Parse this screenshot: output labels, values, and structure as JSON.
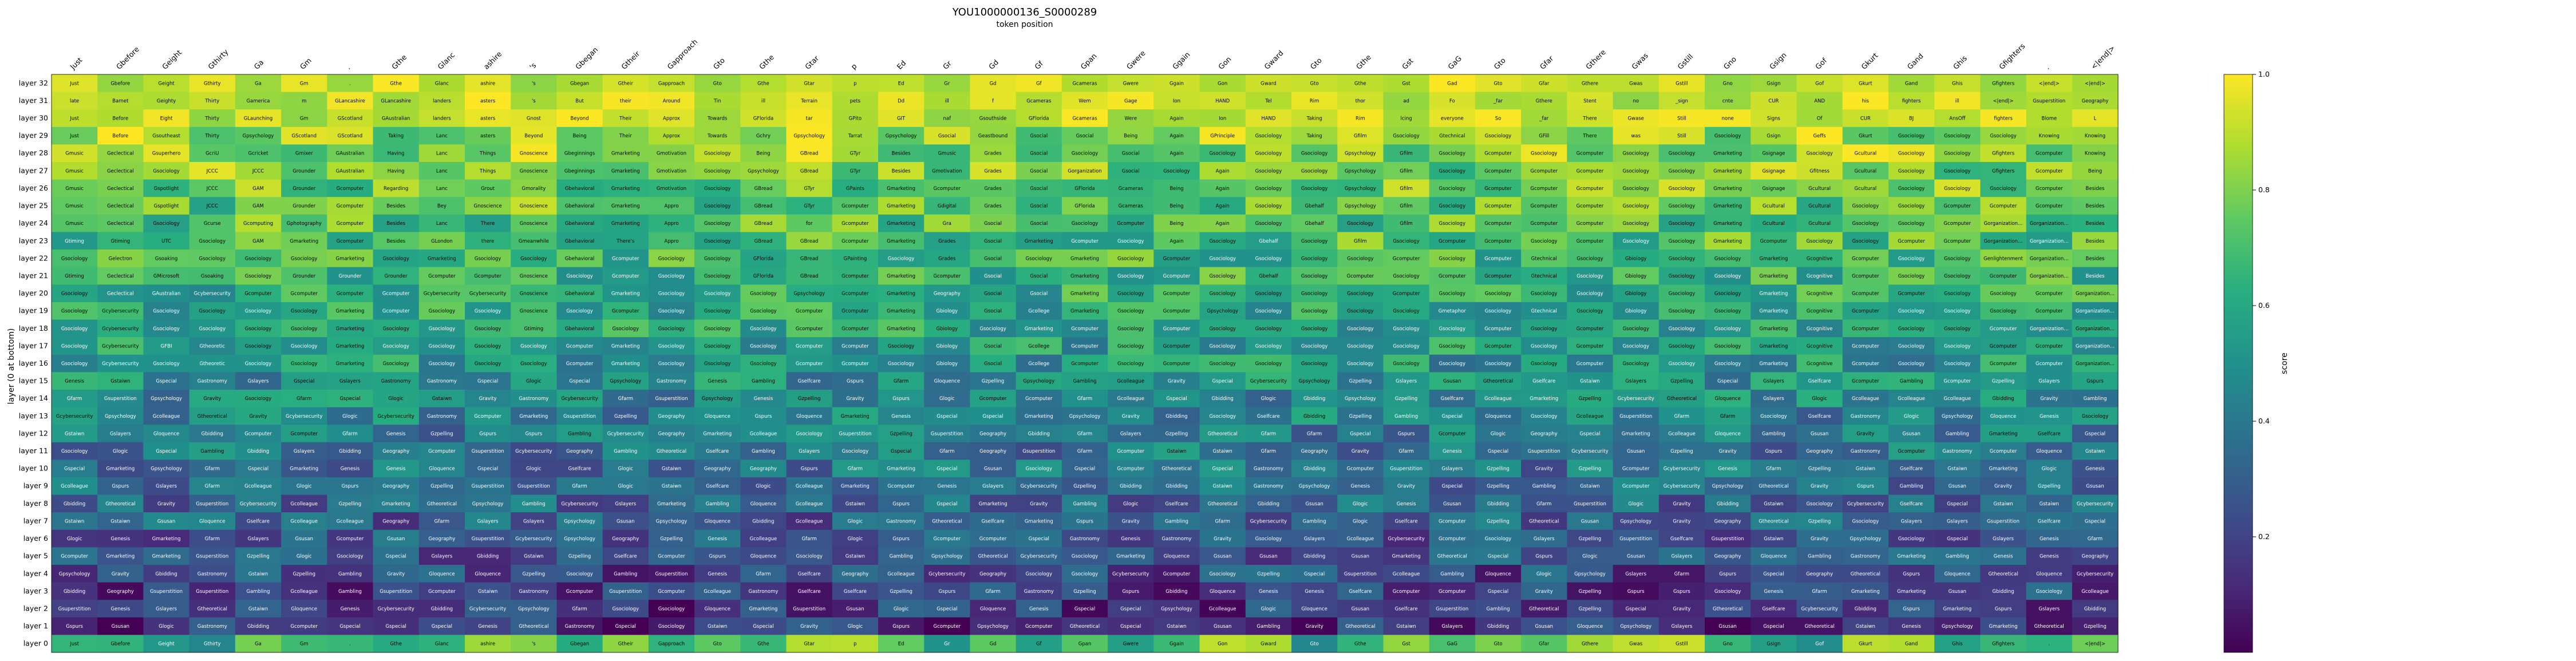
{
  "chart_data": {
    "type": "heatmap",
    "title": "YOU1000000136_S0000289",
    "xlabel": "token position",
    "ylabel": "layer (0 at bottom)",
    "colorbar_label": "score",
    "colormap": "viridis",
    "value_range": [
      0,
      1
    ],
    "colorbar_ticks": [
      "0.2",
      "0.4",
      "0.6",
      "0.8",
      "1.0"
    ],
    "colorbar_tick_values": [
      0.2,
      0.4,
      0.6,
      0.8,
      1.0
    ],
    "x_tokens": [
      "Just",
      "Gbefore",
      "Geight",
      "Gthirty",
      "Ga",
      "Gm",
      ".",
      "Gthe",
      "Glanc",
      "ashire",
      "'s",
      "Gbegan",
      "Gtheir",
      "Gapproach",
      "Gto",
      "Gthe",
      "Gtar",
      "p",
      "Ed",
      "Gr",
      "Gd",
      "Gf",
      "Gpan",
      "Gwere",
      "Ggain",
      "Gon",
      "Gward",
      "Gto",
      "Gthe",
      "Gst",
      "GaG",
      "Gto",
      "Gfar",
      "Gthere",
      "Gwas",
      "Gstill",
      "Gno",
      "Gsign",
      "Gof",
      "Gkurt",
      "Gand",
      "Ghis",
      "Gfighters",
      ".",
      "<|end|>"
    ],
    "layers": [
      "layer 32",
      "layer 31",
      "layer 30",
      "layer 29",
      "layer 28",
      "layer 27",
      "layer 26",
      "layer 25",
      "layer 24",
      "layer 23",
      "layer 22",
      "layer 21",
      "layer 20",
      "layer 19",
      "layer 18",
      "layer 17",
      "layer 16",
      "layer 15",
      "layer 14",
      "layer 13",
      "layer 12",
      "layer 11",
      "layer 10",
      "layer 9",
      "layer 8",
      "layer 7",
      "layer 6",
      "layer 5",
      "layer 4",
      "layer 3",
      "layer 2",
      "layer 1",
      "layer 0"
    ],
    "vocab": [
      "Gsociology",
      "Gcomputer",
      "Gcybersecurity",
      "Gmarketing",
      "Genesis",
      "Gastronomy",
      "Geography",
      "Gravity",
      "Gpsychology",
      "Gtheoretical",
      "Glogic",
      "Gcolleague",
      "Gloquence",
      "Gstaiwn",
      "Gspecial",
      "Gselfcare",
      "Gsuperstition",
      "Gzpelling",
      "Gsusan",
      "Gbidding",
      "Gambling",
      "Gspurs",
      "Gslayers",
      "Gfarm"
    ],
    "top_rows": [
      [
        "Just",
        "Gbefore",
        "Geight",
        "Gthirty",
        "Ga",
        "Gm",
        ".",
        "Gthe",
        "Glanc",
        "ashire",
        "'s",
        "Gbegan",
        "Gtheir",
        "Gapproach",
        "Gto",
        "Gthe",
        "Gtar",
        "p",
        "Ed",
        "Gr",
        "Gd",
        "Gf",
        "Gcameras",
        "Gwere",
        "Ggain",
        "Gon",
        "Gward",
        "Gto",
        "Gthe",
        "Gst",
        "Gad",
        "Gto",
        "Gfar",
        "Gthere",
        "Gwas",
        "Gstill",
        "Gno",
        "Gsign",
        "Gof",
        "Gkurt",
        "Gand",
        "Ghis",
        "Gfighters",
        "<|end|>",
        "<|end|>"
      ],
      [
        "late",
        "Barnet",
        "Geighty",
        "Thirty",
        "Gamerica",
        "m",
        "GLancashire",
        "GLancashire",
        "landers",
        "asters",
        "'s",
        "But",
        "their",
        "Around",
        "Tin",
        "ill",
        "Terrain",
        "pets",
        "Dd",
        "ill",
        "f",
        "Gcameras",
        "Wem",
        "Gage",
        "Ion",
        "HAND",
        "Tel",
        "Rim",
        "thor",
        "ad",
        "Fo",
        "_far",
        "Gthere",
        "Stent",
        "no",
        "_sign",
        "cnte",
        "CUR",
        "AND",
        "his",
        "fighters",
        "ill",
        "<|end|>"
      ],
      [
        "Just",
        "Before",
        "Eight",
        "Thirty",
        "GLaunching",
        "Gm",
        "GScotland",
        "GAustralian",
        "landers",
        "asters",
        "Gnost",
        "Beyond",
        "Their",
        "Approx",
        "Towards",
        "GFlorida",
        "tar",
        "GPito",
        "GIT",
        "naf",
        "Gsouthside",
        "GFlorida",
        "Gcameras",
        "Were",
        "Again",
        "Ion",
        "HAND",
        "Taking",
        "Rim",
        "lcing",
        "everyone",
        "So",
        "_far",
        "There",
        "Gwase",
        "Still",
        "none",
        "Signs",
        "Of",
        "CUR",
        "BJ",
        "AnsOff",
        "fighters",
        "Blome",
        "L"
      ],
      [
        "Just",
        "Before",
        "Gsoutheast",
        "Thirty",
        "Gpsychology",
        "GScotland",
        "GScotland",
        "Taking",
        "Lanc",
        "asters",
        "Beyond",
        "Being",
        "Their",
        "Approx",
        "Towards",
        "Gchry",
        "Gpsychology",
        "Tarrat",
        "Gpsychology",
        "Gsocial",
        "Geastbound",
        "Gsocial",
        "Gsocial",
        "Being",
        "Again",
        "GPrinciple",
        "Gsociology",
        "Taking",
        "Gfilm",
        "Gsociology",
        "Gtechnical",
        "Gsociology",
        "GFill",
        "There",
        "was",
        "Still",
        "Gsociology",
        "Gsign",
        "Geffs",
        "Gkurt",
        "Gsociology",
        "Gsociology",
        "Gsociology",
        "Knowing",
        "Knowing"
      ],
      [
        "Gmusic",
        "Geclectical",
        "Gsuperhero",
        "GcriU",
        "Gcricket",
        "Gmixer",
        "GAustralian",
        "Having",
        "Lanc",
        "Things",
        "Gnoscience",
        "Gbeginnings",
        "Gmarketing",
        "Gmotivation",
        "Gsociology",
        "Being",
        "GBread",
        "GTyr",
        "Besides",
        "Gmusic",
        "Grades",
        "Gsocial",
        "Gsociology",
        "Gsocial",
        "Again",
        "Gsociology",
        "Gsociology",
        "Gsociology",
        "Gpsychology",
        "Gfilm",
        "Gsociology",
        "Gcomputer",
        "Gsociology",
        "Gcomputer",
        "Gsociology",
        "Gsociology",
        "Gmarketing",
        "Gsignage",
        "Gsociology",
        "Gcultural",
        "Gsociology",
        "Gsociology",
        "Gfighters",
        "Gcomputer",
        "Knowing"
      ],
      [
        "Gmusic",
        "Geclectical",
        "Gsociology",
        "JCCC",
        "JCCC",
        "Grounder",
        "GAustralian",
        "Having",
        "Lanc",
        "Things",
        "Gnoscience",
        "Gbeginnings",
        "Gmarketing",
        "Gmotivation",
        "Gsociology",
        "Gpsychology",
        "GBread",
        "GTyr",
        "Besides",
        "Gmotivation",
        "Grades",
        "Gsocial",
        "Gorganization",
        "Gsocial",
        "Gsociology",
        "Again",
        "Gsociology",
        "Gsociology",
        "Gpsychology",
        "Gfilm",
        "Gsociology",
        "Gcomputer",
        "Gcomputer",
        "Gcomputer",
        "Gsociology",
        "Gsociology",
        "Gmarketing",
        "Gsignage",
        "Gfitness",
        "Gcultural",
        "Gsociology",
        "Gsociology",
        "Gfighters",
        "Gcomputer",
        "Being"
      ],
      [
        "Gmusic",
        "Geclectical",
        "Gspotlight",
        "JCCC",
        "GAM",
        "Grounder",
        "Gcomputer",
        "Regarding",
        "Lanc",
        "Grout",
        "Gmorality",
        "Gbehavioral",
        "Gmarketing",
        "Gmotivation",
        "Gsociology",
        "GBread",
        "GTyr",
        "GPaints",
        "Gmarketing",
        "Gcomputer",
        "Grades",
        "Gsocial",
        "GFlorida",
        "Gcameras",
        "Being",
        "Again",
        "Gsociology",
        "Gsociology",
        "Gpsychology",
        "Gfilm",
        "Gsociology",
        "Gcomputer",
        "Gcomputer",
        "Gcomputer",
        "Gsociology",
        "Gsociology",
        "Gmarketing",
        "Gsignage",
        "Gcultural",
        "Gcultural",
        "Gsociology",
        "Gsociology",
        "Gsociology",
        "Gcomputer",
        "Besides"
      ],
      [
        "Gmusic",
        "Geclectical",
        "Gspotlight",
        "JCCC",
        "GAM",
        "Grounder",
        "Gcomputer",
        "Besides",
        "Bey",
        "Gnoscience",
        "Gnoscience",
        "Gbehavioral",
        "Gmarketing",
        "Appro",
        "Gsociology",
        "GBread",
        "GTyr",
        "Gcomputer",
        "Gmarketing",
        "Gdigital",
        "Grades",
        "Gsocial",
        "GFlorida",
        "Gcameras",
        "Being",
        "Again",
        "Gsociology",
        "Gbehalf",
        "Gpsychology",
        "Gfilm",
        "Gsociology",
        "Gcomputer",
        "Gcomputer",
        "Gcomputer",
        "Gsociology",
        "Gsociology",
        "Gmarketing",
        "Gcultural",
        "Gcultural",
        "Gsociology",
        "Gsociology",
        "Gcomputer",
        "Gcomputer",
        "Gcomputer",
        "Besides"
      ],
      [
        "Gmusic",
        "Geclectical",
        "Gsociology",
        "Gcurse",
        "Gcomputing",
        "Gphotography",
        "Gcomputer",
        "Besides",
        "Lanc",
        "There",
        "Gnoscience",
        "Gbehavioral",
        "Gmarketing",
        "Appro",
        "Gsociology",
        "GBread",
        "for",
        "Gcomputer",
        "Gmarketing",
        "Gra",
        "Gsocial",
        "Gsocial",
        "Gsociology",
        "Gcomputer",
        "Being",
        "Again",
        "Gsociology",
        "Gbehalf",
        "Gsociology",
        "Gfilm",
        "Gsociology",
        "Gcomputer",
        "Gcomputer",
        "Gcomputer",
        "Gsociology",
        "Gsociology",
        "Gmarketing",
        "Gcultural",
        "Gcultural",
        "Gsociology",
        "Gsociology",
        "Gcomputer",
        "Gorganizational",
        "Gorganizational",
        "Besides"
      ],
      [
        "Gtiming",
        "Gtiming",
        "UTC",
        "Gsociology",
        "GAM",
        "Gmarketing",
        "Gcomputer",
        "Besides",
        "GLondon",
        "there",
        "Gmeanwhile",
        "Gbehavioral",
        "There's",
        "Appro",
        "Gsociology",
        "GBread",
        "GBread",
        "Gcomputer",
        "Gmarketing",
        "Grades",
        "Gsocial",
        "Gmarketing",
        "Gcomputer",
        "Gsociology",
        "Again",
        "Gsociology",
        "Gbehalf",
        "Gsociology",
        "Gfilm",
        "Gsociology",
        "Gcomputer",
        "Gcomputer",
        "Gsociology",
        "Gcomputer",
        "Gsociology",
        "Gsociology",
        "Gmarketing",
        "Gcomputer",
        "Gsociology",
        "Gsociology",
        "Gcomputer",
        "Gcomputer",
        "Gorganizational",
        "Gorganizational",
        "Besides"
      ],
      [
        "Gsociology",
        "Gelectron",
        "Gsoaking",
        "Gsociology",
        "Gsociology",
        "Gsociology",
        "Gmarketing",
        "Gsociology",
        "Gmarketing",
        "Gsociology",
        "Gsociology",
        "Gbehavioral",
        "Gcomputer",
        "Gsociology",
        "Gsociology",
        "GFlorida",
        "GBread",
        "GPainting",
        "Gsociology",
        "Grades",
        "Gsocial",
        "Gsociology",
        "Gmarketing",
        "Gsociology",
        "Gcomputer",
        "Gsociology",
        "Gsociology",
        "Gsociology",
        "Gsociology",
        "Gcomputer",
        "Gsociology",
        "Gcomputer",
        "Gtechnical",
        "Gsociology",
        "Gbiology",
        "Gsociology",
        "Gsociology",
        "Gmarketing",
        "Gcognitive",
        "Gcomputer",
        "Gsociology",
        "Gsociology",
        "Genlightenment",
        "Gorganizational",
        "Besides"
      ],
      [
        "Gtiming",
        "Geclectical",
        "GMicrosoft",
        "Gsoaking",
        "Gsociology",
        "Grounder",
        "Grounder",
        "Grounder",
        "Gcomputer",
        "Gcomputer",
        "Gnoscience",
        "Gsociology",
        "Gcomputer",
        "Gsociology",
        "Gsociology",
        "GFlorida",
        "GBread",
        "Gcomputer",
        "Gmarketing",
        "Gcomputer",
        "Gsocial",
        "Gsocial",
        "Gmarketing",
        "Gsociology",
        "Gcomputer",
        "Gsociology",
        "Gbehalf",
        "Gsociology",
        "Gcomputer",
        "Gsociology",
        "Gcomputer",
        "Gcomputer",
        "Gtechnical",
        "Gsociology",
        "Gbiology",
        "Gsociology",
        "Gsociology",
        "Gmarketing",
        "Gcognitive",
        "Gcomputer",
        "Gsociology",
        "Gsociology",
        "Gcomputer",
        "Gorganizational",
        "Besides"
      ],
      [
        "Gsociology",
        "Geclectical",
        "GAustralian",
        "Gcybersecurity",
        "Gcomputer",
        "Gcomputer",
        "Gcomputer",
        "Gcomputer",
        "Gcybersecurity",
        "Gcybersecurity",
        "Gnoscience",
        "Gbehavioral",
        "Gmarketing",
        "Gsociology",
        "Gsociology",
        "Gsociology",
        "Gpsychology",
        "Gcomputer",
        "Gmarketing",
        "Geography",
        "Gsocial",
        "Gsocial",
        "Gmarketing",
        "Gsociology",
        "Gcomputer",
        "Gsociology",
        "Gsociology",
        "Gsociology",
        "Gsociology",
        "Gcomputer",
        "Gsociology",
        "Gsociology",
        "Gsociology",
        "Gsociology",
        "Gbiology",
        "Gsociology",
        "Gsociology",
        "Gmarketing",
        "Gcognitive",
        "Gcomputer",
        "Gcomputer",
        "Gsociology",
        "Gsociology",
        "Gcomputer",
        "Gorganizational"
      ],
      [
        "Gsociology",
        "Gcybersecurity",
        "Gsociology",
        "Gsociology",
        "Gsociology",
        "Gsociology",
        "Gmarketing",
        "Gcomputer",
        "Gsociology",
        "Gsociology",
        "Gnoscience",
        "Gsociology",
        "Gcomputer",
        "Gsociology",
        "Gsociology",
        "Gsociology",
        "Gcomputer",
        "Gcomputer",
        "Gmarketing",
        "Gbiology",
        "Gsocial",
        "Gcollege",
        "Gmarketing",
        "Gsociology",
        "Gcomputer",
        "Gpsychology",
        "Gsociology",
        "Gsociology",
        "Gsociology",
        "Gsociology",
        "Gmetaphor",
        "Gsociology",
        "Gtechnical",
        "Gsociology",
        "Gbiology",
        "Gsociology",
        "Gsociology",
        "Gmarketing",
        "Gcognitive",
        "Gcomputer",
        "Gsociology",
        "Gsociology",
        "Gsociology",
        "Gcomputer",
        "Gorganizational"
      ],
      [
        "Gsociology",
        "Gcybersecurity",
        "Gsociology",
        "Gsociology",
        "Gsociology",
        "Gsociology",
        "Gmarketing",
        "Gsociology",
        "Gsociology",
        "Gsociology",
        "Gtiming",
        "Gbehavioral",
        "Gsociology",
        "Gsociology",
        "Gsociology",
        "Gsociology",
        "Gcomputer",
        "Gcomputer",
        "Gmarketing",
        "Gbiology",
        "Gsociology",
        "Gmarketing",
        "Gcomputer",
        "Gsociology",
        "Gcomputer",
        "Gsociology",
        "Gsociology",
        "Gsociology",
        "Gsociology",
        "Gsociology",
        "Gsociology",
        "Gcomputer",
        "Gsociology",
        "Gcomputer",
        "Gsociology",
        "Gsociology",
        "Gsociology",
        "Gmarketing",
        "Gcognitive",
        "Gcomputer",
        "Gsociology",
        "Gsociology",
        "Gcomputer",
        "Gorganizational",
        "Gorganizational"
      ],
      [
        "Gsociology",
        "Gcybersecurity",
        "GFBI",
        "Gtheoretic",
        "Gsociology",
        "Gsociology",
        "Gmarketing",
        "Gsociology",
        "Gsociology",
        "Gsociology",
        "Gsociology",
        "Gcomputer",
        "Gmarketing",
        "Gsociology",
        "Gsociology",
        "Gsociology",
        "Gcomputer",
        "Gcomputer",
        "Gsociology",
        "Gbiology",
        "Gsocial",
        "Gcollege",
        "Gcomputer",
        "Gsociology",
        "Gcomputer",
        "Gsociology",
        "Gsociology",
        "Gsociology",
        "Gsociology",
        "Gsociology",
        "Gsociology",
        "Gcomputer",
        "Gsociology",
        "Gcomputer",
        "Gsociology",
        "Gsociology",
        "Gsociology",
        "Gmarketing",
        "Gcognitive",
        "Gcomputer",
        "Gsociology",
        "Gsociology",
        "Gcomputer",
        "Gcomputer",
        "Gorganizational"
      ],
      [
        "Gsociology",
        "Gcybersecurity",
        "Gsociology",
        "Gtheoretic",
        "Gsociology",
        "Gsociology",
        "Gmarketing",
        "Gsociology",
        "Gsociology",
        "Gsociology",
        "Gsociology",
        "Gcomputer",
        "Gmarketing",
        "Gsociology",
        "Gsociology",
        "Gsociology",
        "Gcomputer",
        "Gcomputer",
        "Gsociology",
        "Gbiology",
        "Gsocial",
        "Gcollege",
        "Gcomputer",
        "Gsociology",
        "Gcomputer",
        "Gsociology",
        "Gsociology",
        "Gsociology",
        "Gsociology",
        "Gsociology",
        "Gsociology",
        "Gsociology",
        "Gsociology",
        "Gcomputer",
        "Gsociology",
        "Gsociology",
        "Gsociology",
        "Gmarketing",
        "Gcognitive",
        "Gcomputer",
        "Gsociology",
        "Gsociology",
        "Gcomputer",
        "Gcomputer",
        "Gorganizational"
      ]
    ]
  }
}
